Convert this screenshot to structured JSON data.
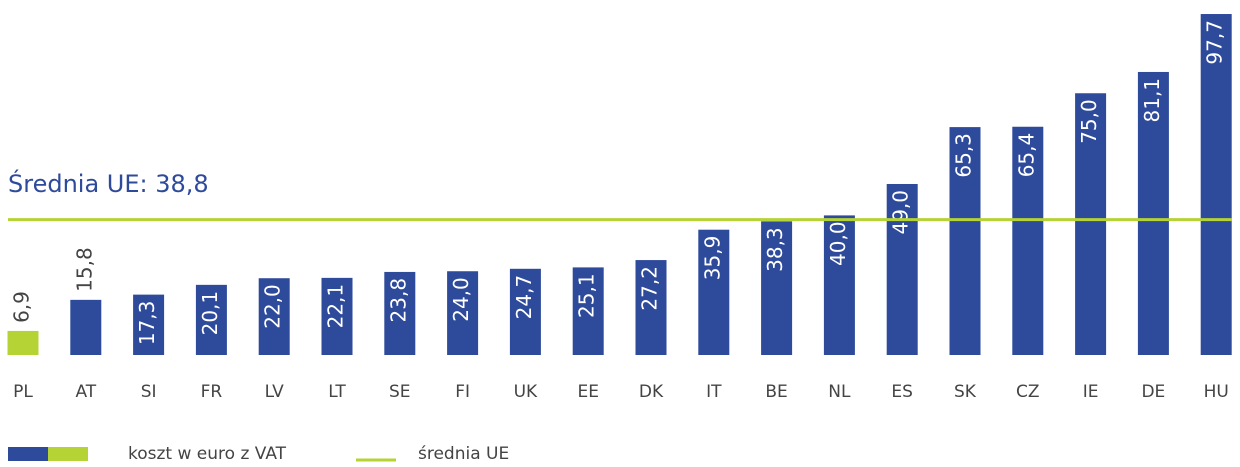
{
  "chart_data": {
    "type": "bar",
    "categories": [
      "PL",
      "AT",
      "SI",
      "FR",
      "LV",
      "LT",
      "SE",
      "FI",
      "UK",
      "EE",
      "DK",
      "IT",
      "BE",
      "NL",
      "ES",
      "SK",
      "CZ",
      "IE",
      "DE",
      "HU"
    ],
    "values": [
      6.9,
      15.8,
      17.3,
      20.1,
      22.0,
      22.1,
      23.8,
      24.0,
      24.7,
      25.1,
      27.2,
      35.9,
      38.3,
      40.0,
      49.0,
      65.3,
      65.4,
      75.0,
      81.1,
      97.7
    ],
    "value_labels": [
      "6,9",
      "15,8",
      "17,3",
      "20,1",
      "22,0",
      "22,1",
      "23,8",
      "24,0",
      "24,7",
      "25,1",
      "27,2",
      "35,9",
      "38,3",
      "40,0",
      "49,0",
      "65,3",
      "65,4",
      "75,0",
      "81,1",
      "97,7"
    ],
    "colors": [
      "#b5d334",
      "#2e4a9b",
      "#2e4a9b",
      "#2e4a9b",
      "#2e4a9b",
      "#2e4a9b",
      "#2e4a9b",
      "#2e4a9b",
      "#2e4a9b",
      "#2e4a9b",
      "#2e4a9b",
      "#2e4a9b",
      "#2e4a9b",
      "#2e4a9b",
      "#2e4a9b",
      "#2e4a9b",
      "#2e4a9b",
      "#2e4a9b",
      "#2e4a9b",
      "#2e4a9b"
    ],
    "ylim": [
      0,
      100
    ],
    "average": {
      "value": 38.8,
      "label": "Średnia UE: 38,8",
      "color": "#b5d334"
    },
    "legend": {
      "bars_label": "koszt w euro z VAT",
      "average_label": "średnia UE"
    }
  }
}
